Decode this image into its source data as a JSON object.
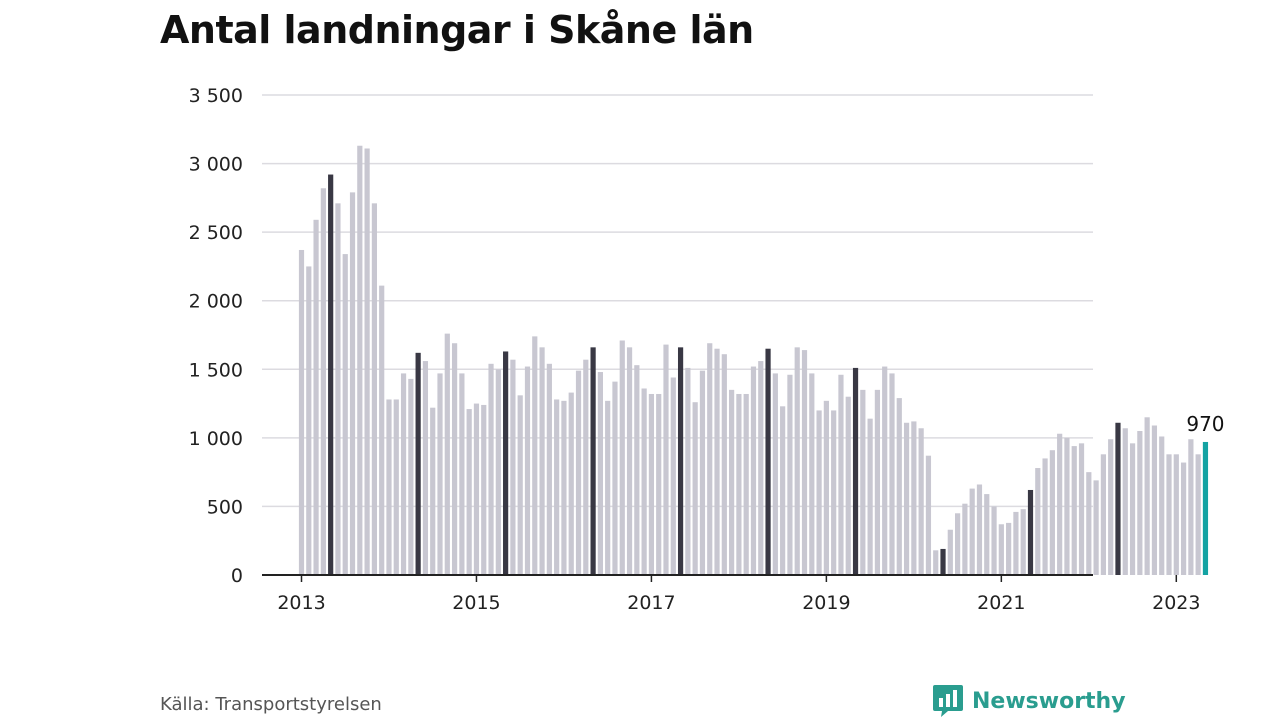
{
  "header": {
    "title": "Antal landningar i Skåne län"
  },
  "footer": {
    "source": "Källa: Transportstyrelsen",
    "brand": "Newsworthy"
  },
  "colors": {
    "regular": "#c8c7d1",
    "may": "#393844",
    "latest": "#14a3a3",
    "axis": "#222222",
    "grid": "#dcdbe0",
    "brand": "#2a9d8f"
  },
  "chart_data": {
    "type": "bar",
    "title": "Antal landningar i Skåne län",
    "xlabel": "",
    "ylabel": "",
    "ylim": [
      0,
      3500
    ],
    "yticks": [
      0,
      500,
      1000,
      1500,
      2000,
      2500,
      3000,
      3500
    ],
    "ytick_labels": [
      "0",
      "500",
      "1 000",
      "1 500",
      "2 000",
      "2 500",
      "3 000",
      "3 500"
    ],
    "xticks": [
      "2013",
      "2015",
      "2017",
      "2019",
      "2021",
      "2023"
    ],
    "start": "2013-01",
    "end": "2023-05",
    "grid": true,
    "highlight": "May of each year dark; latest month teal",
    "annotation": {
      "text": "970",
      "value": 970
    },
    "values": [
      2370,
      2250,
      2590,
      2820,
      2920,
      2710,
      2340,
      2790,
      3130,
      3110,
      2710,
      2110,
      1280,
      1280,
      1470,
      1430,
      1620,
      1560,
      1220,
      1470,
      1760,
      1690,
      1470,
      1210,
      1250,
      1240,
      1540,
      1500,
      1630,
      1570,
      1310,
      1520,
      1740,
      1660,
      1540,
      1280,
      1270,
      1330,
      1490,
      1570,
      1660,
      1480,
      1270,
      1410,
      1710,
      1660,
      1530,
      1360,
      1320,
      1320,
      1680,
      1440,
      1660,
      1510,
      1260,
      1490,
      1690,
      1650,
      1610,
      1350,
      1320,
      1320,
      1520,
      1560,
      1650,
      1470,
      1230,
      1460,
      1660,
      1640,
      1470,
      1200,
      1270,
      1200,
      1460,
      1300,
      1510,
      1350,
      1140,
      1350,
      1520,
      1470,
      1290,
      1110,
      1120,
      1070,
      870,
      180,
      190,
      330,
      450,
      520,
      630,
      660,
      590,
      500,
      370,
      380,
      460,
      480,
      620,
      780,
      850,
      910,
      1030,
      1000,
      940,
      960,
      750,
      690,
      880,
      990,
      1110,
      1070,
      960,
      1050,
      1150,
      1090,
      1010,
      880,
      880,
      820,
      990,
      880,
      970
    ]
  }
}
